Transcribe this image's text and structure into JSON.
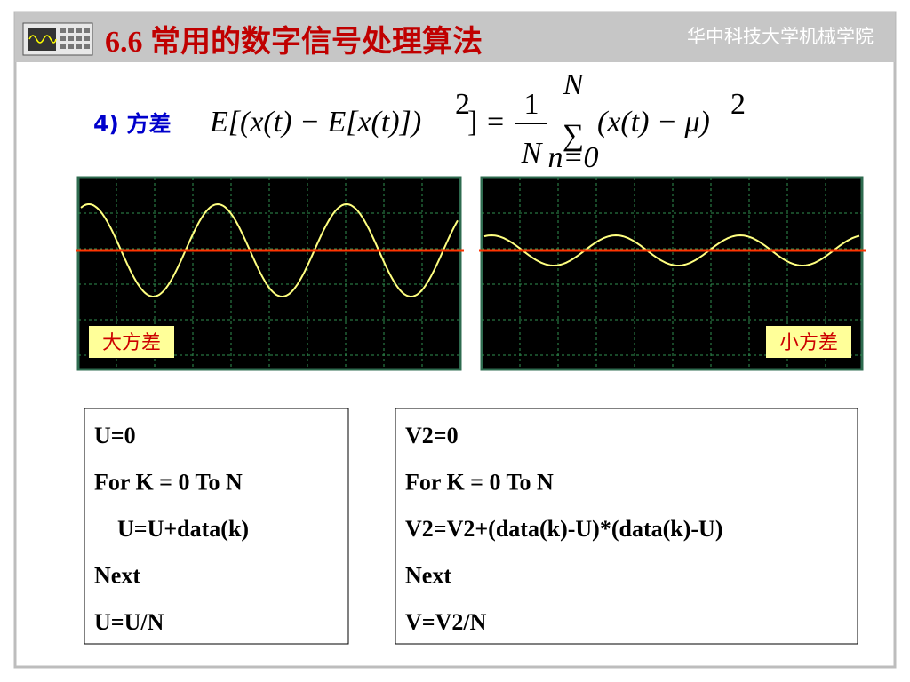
{
  "header": {
    "title": "6.6 常用的数字信号处理算法",
    "institution": "华中科技大学机械学院"
  },
  "section_label": "4) 方差",
  "formula": {
    "lhs": "E[(x(t) − E[x(t)])",
    "lhs_exponent": "2",
    "lhs_close": "]",
    "equals": "=",
    "numerator": "1",
    "denominator": "N",
    "sum_symbol": "∑",
    "sum_upper": "N",
    "sum_lower": "n=0",
    "rhs": "(x(t) − μ)",
    "rhs_exponent": "2"
  },
  "panels": [
    {
      "label": "大方差"
    },
    {
      "label": "小方差"
    }
  ],
  "code_boxes": [
    {
      "lines": [
        "U=0",
        "For K = 0 To N",
        "U=U+data(k)",
        "Next",
        "U=U/N"
      ]
    },
    {
      "lines": [
        "V2=0",
        "For K = 0 To N",
        "V2=V2+(data(k)-U)*(data(k)-U)",
        "Next",
        "V=V2/N"
      ]
    }
  ]
}
